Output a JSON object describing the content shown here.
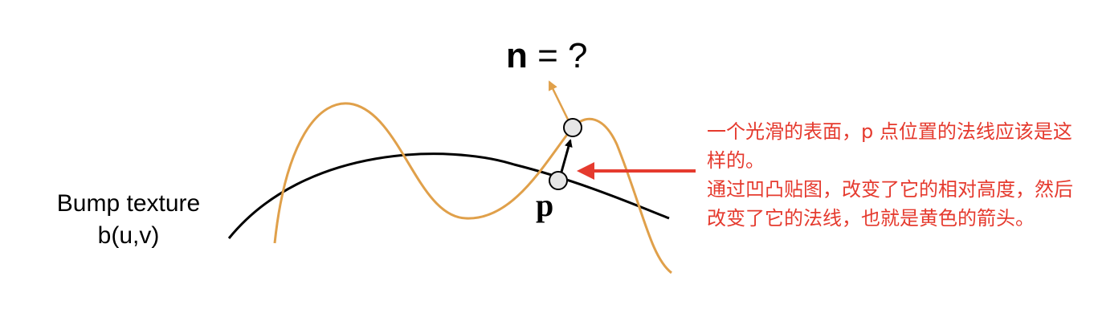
{
  "labels": {
    "bump_line1": "Bump texture",
    "bump_line2": "b(u,v)",
    "normal_symbol": "n",
    "normal_rest": " = ?",
    "point": "p"
  },
  "annotation": {
    "paragraph1": "一个光滑的表面，p 点位置的法线应该是这样的。",
    "paragraph2": "通过凹凸贴图，改变了它的相对高度，然后改变了它的法线，也就是黄色的箭头。"
  },
  "colors": {
    "bump_curve": "#e0a04a",
    "surface_curve": "#000000",
    "annotation": "#e53a2e",
    "point_fill": "#e6e6e6"
  }
}
